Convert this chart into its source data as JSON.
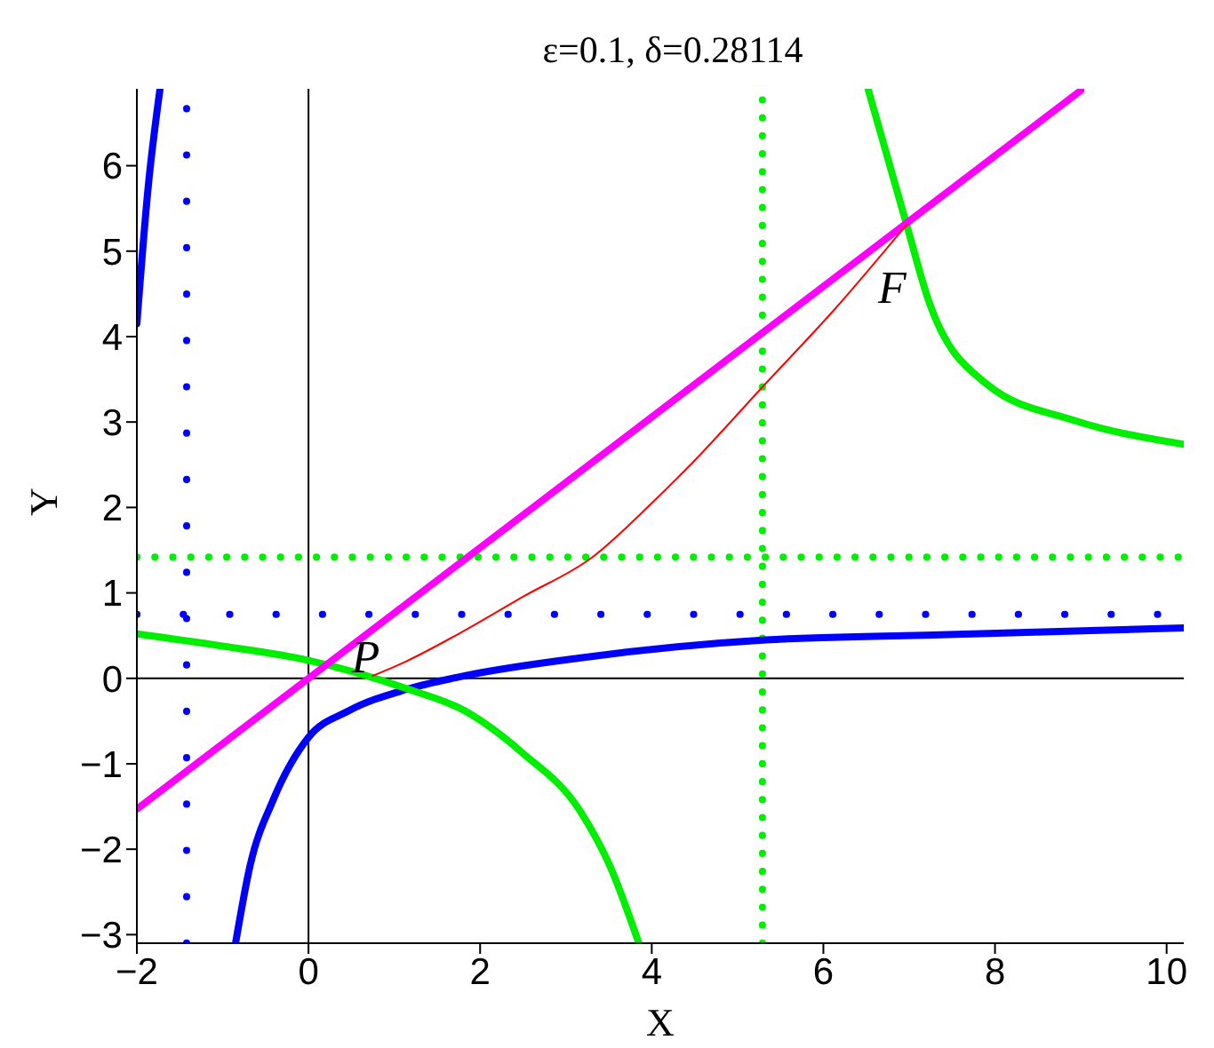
{
  "chart_data": {
    "type": "line",
    "title": "ε=0.1, δ=0.28114",
    "xlabel": "X",
    "ylabel": "Y",
    "xlim": [
      -2,
      10.2
    ],
    "ylim": [
      -3.1,
      6.9
    ],
    "xticks": [
      -2,
      0,
      2,
      4,
      6,
      8,
      10
    ],
    "yticks": [
      -3,
      -2,
      -1,
      0,
      1,
      2,
      3,
      4,
      5,
      6
    ],
    "grid": false,
    "marker": "none",
    "line_style": "solid",
    "series": [
      {
        "color": "#0000ff",
        "x": [
          -2,
          -1.87,
          -1.73,
          null,
          -0.85,
          -0.68,
          -0.41,
          0,
          0.47,
          1.14,
          1.82,
          3.17,
          5.33,
          7.36,
          10.2
        ],
        "values": [
          4.15,
          5.73,
          6.9,
          null,
          -3.1,
          -2.19,
          -1.42,
          -0.69,
          -0.38,
          -0.13,
          0.03,
          0.24,
          0.45,
          0.51,
          0.59
        ]
      },
      {
        "color": "#00ee00",
        "x": [
          -2,
          -1.02,
          0,
          1.14,
          1.82,
          2.49,
          3.17,
          3.51,
          3.85,
          null,
          6.52,
          6.97,
          7.23,
          7.91,
          8.92,
          10.2
        ],
        "values": [
          0.52,
          0.38,
          0.21,
          -0.12,
          -0.38,
          -0.87,
          -1.56,
          -2.19,
          -3.1,
          null,
          6.9,
          5.31,
          4.41,
          3.44,
          3.02,
          2.74
        ]
      },
      {
        "color": "#ff00ff",
        "x": [
          -2,
          9
        ],
        "values": [
          -1.53,
          6.88
        ]
      },
      {
        "color": "#ff0000",
        "x": [
          0.75,
          1.14,
          1.82,
          2.49,
          3.31,
          4.0,
          4.5,
          5.29,
          6.15,
          6.97
        ],
        "values": [
          0.03,
          0.2,
          0.56,
          0.95,
          1.42,
          2.05,
          2.55,
          3.41,
          4.34,
          5.31
        ]
      }
    ],
    "ref_lines": [
      {
        "axis": "x",
        "value": 0,
        "color": "#000000",
        "line_style": "solid"
      },
      {
        "axis": "y",
        "value": 0,
        "color": "#000000",
        "line_style": "solid"
      },
      {
        "axis": "x",
        "value": -1.42,
        "color": "#0000ff",
        "line_style": "dotted"
      },
      {
        "axis": "y",
        "value": 0.75,
        "color": "#0000ff",
        "line_style": "dotted"
      },
      {
        "axis": "x",
        "value": 5.29,
        "color": "#00ee00",
        "line_style": "dotted"
      },
      {
        "axis": "y",
        "value": 1.42,
        "color": "#00ee00",
        "line_style": "dotted"
      }
    ],
    "annotations": [
      {
        "text": "P",
        "x": 0.75,
        "y": 0.03
      },
      {
        "text": "F",
        "x": 6.97,
        "y": 5.31
      }
    ]
  }
}
